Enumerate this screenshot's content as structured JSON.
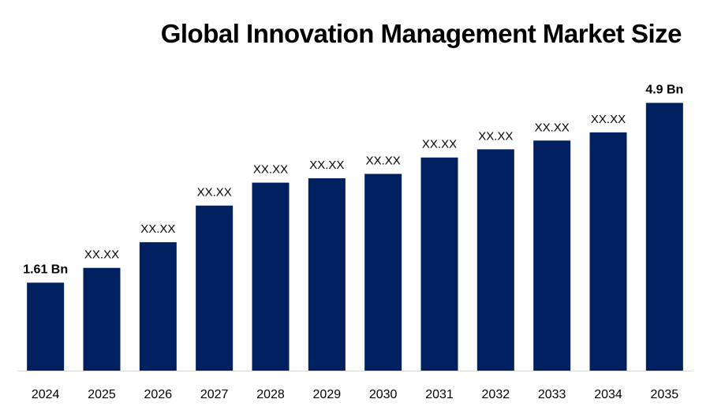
{
  "chart_data": {
    "type": "bar",
    "title": "Global Innovation Management Market Size",
    "xlabel": "",
    "ylabel": "",
    "categories": [
      "2024",
      "2025",
      "2026",
      "2027",
      "2028",
      "2029",
      "2030",
      "2031",
      "2032",
      "2033",
      "2034",
      "2035"
    ],
    "values": [
      1.61,
      1.88,
      2.35,
      3.02,
      3.44,
      3.52,
      3.6,
      3.9,
      4.05,
      4.21,
      4.36,
      4.9
    ],
    "data_labels": [
      "1.61 Bn",
      "XX.XX",
      "XX.XX",
      "XX.XX",
      "XX.XX",
      "XX.XX",
      "XX.XX",
      "XX.XX",
      "XX.XX",
      "XX.XX",
      "XX.XX",
      "4.9 Bn"
    ],
    "bold_labels": [
      true,
      false,
      false,
      false,
      false,
      false,
      false,
      false,
      false,
      false,
      false,
      true
    ],
    "ylim": [
      0,
      5.7
    ],
    "grid": false,
    "legend": "none",
    "bar_color": "#002060"
  }
}
